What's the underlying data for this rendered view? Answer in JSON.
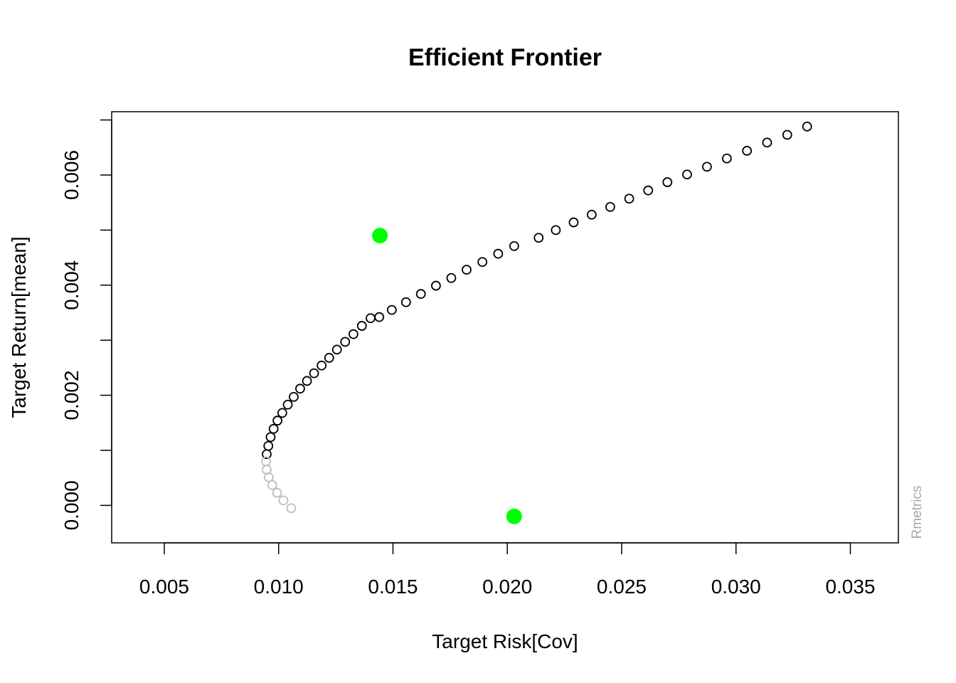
{
  "chart_data": {
    "type": "scatter",
    "title": "Efficient Frontier",
    "xlabel": "Target Risk[Cov]",
    "ylabel": "Target Return[mean]",
    "watermark": "Rmetrics",
    "xlim": [
      0.0027,
      0.0371
    ],
    "ylim": [
      -0.00068,
      0.00715
    ],
    "x_ticks": [
      0.005,
      0.01,
      0.015,
      0.02,
      0.025,
      0.03,
      0.035
    ],
    "x_tick_labels": [
      "0.005",
      "0.010",
      "0.015",
      "0.020",
      "0.025",
      "0.030",
      "0.035"
    ],
    "y_ticks": [
      0.0,
      0.001,
      0.002,
      0.003,
      0.004,
      0.005,
      0.006,
      0.007
    ],
    "y_tick_labels": [
      "0.000",
      "0.002",
      "0.004",
      "0.006"
    ],
    "y_tick_labels_at": [
      0.0,
      0.002,
      0.004,
      0.006
    ],
    "colors": {
      "frontier": "#000000",
      "inefficient": "#bebebe",
      "highlight": "#00ff00"
    },
    "series": [
      {
        "role": "frontier",
        "x": [
          0.00948,
          0.00955,
          0.00965,
          0.00978,
          0.00995,
          0.01016,
          0.0104,
          0.01066,
          0.01094,
          0.01124,
          0.01155,
          0.01188,
          0.01221,
          0.01255,
          0.01291,
          0.01327,
          0.01364,
          0.01402,
          0.0144,
          0.01495,
          0.01557,
          0.01622,
          0.01688,
          0.01755,
          0.01822,
          0.01891,
          0.0196,
          0.0203,
          0.02137,
          0.02212,
          0.0229,
          0.02369,
          0.0245,
          0.02533,
          0.02616,
          0.027,
          0.02786,
          0.02873,
          0.0296,
          0.03048,
          0.03136,
          0.03224,
          0.03311
        ],
        "y": [
          0.00093,
          0.00108,
          0.00124,
          0.00139,
          0.00154,
          0.00168,
          0.00183,
          0.00197,
          0.00212,
          0.00226,
          0.0024,
          0.00254,
          0.00268,
          0.00283,
          0.00297,
          0.00311,
          0.00326,
          0.0034,
          0.00342,
          0.00355,
          0.00369,
          0.00384,
          0.00399,
          0.00413,
          0.00428,
          0.00442,
          0.00457,
          0.00471,
          0.00486,
          0.005,
          0.00514,
          0.00528,
          0.00542,
          0.00557,
          0.00572,
          0.00587,
          0.00601,
          0.00615,
          0.0063,
          0.00644,
          0.00659,
          0.00673,
          0.00688
        ]
      },
      {
        "role": "inefficient",
        "x": [
          0.00945,
          0.00948,
          0.00957,
          0.00972,
          0.00993,
          0.01021,
          0.01055
        ],
        "y": [
          0.0008,
          0.00065,
          0.00051,
          0.00037,
          0.00023,
          9e-05,
          -5e-05
        ]
      }
    ],
    "highlights": {
      "x": [
        0.01443,
        0.0203
      ],
      "y": [
        0.0049,
        -0.0002
      ]
    }
  }
}
